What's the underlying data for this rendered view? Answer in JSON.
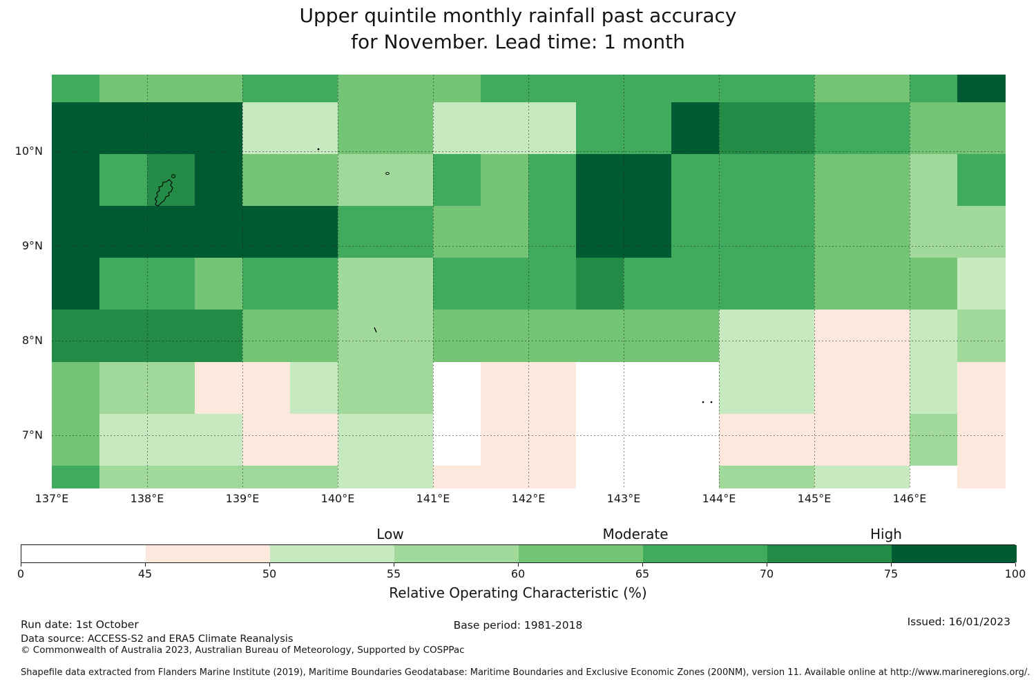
{
  "title": {
    "line1": "Upper quintile monthly rainfall past accuracy",
    "line2": "for November. Lead time: 1 month"
  },
  "chart_data": {
    "type": "heatmap",
    "title": "Upper quintile monthly rainfall past accuracy for November. Lead time: 1 month",
    "xlabel": "Longitude",
    "ylabel": "Latitude",
    "x_tick_labels": [
      "137°E",
      "138°E",
      "139°E",
      "140°E",
      "141°E",
      "142°E",
      "143°E",
      "144°E",
      "145°E",
      "146°E"
    ],
    "y_tick_labels": [
      "10°N",
      "9°N",
      "8°N",
      "7°N"
    ],
    "x_tick_degrees": [
      137,
      138,
      139,
      140,
      141,
      142,
      143,
      144,
      145,
      146
    ],
    "y_tick_degrees": [
      10,
      9,
      8,
      7
    ],
    "lon_edges": [
      137.0,
      137.5,
      138.0,
      138.5,
      139.0,
      139.5,
      140.0,
      140.5,
      141.0,
      141.5,
      142.0,
      142.5,
      143.0,
      143.5,
      144.0,
      144.5,
      145.0,
      145.5,
      146.0,
      146.5,
      147.0
    ],
    "lat_edges": [
      10.8,
      10.51,
      9.97,
      9.42,
      8.88,
      8.33,
      7.78,
      7.24,
      6.69,
      6.46
    ],
    "grid_on": true,
    "value_buckets": {
      "W": "0-45 %",
      "P": "45-50 %",
      "A": "50-55 %",
      "B": "55-60 %",
      "C": "60-65 %",
      "D": "65-70 %",
      "E": "70-75 %",
      "F": "75-100 %"
    },
    "palette": {
      "W": "#ffffff",
      "P": "#fce8dc",
      "A": "#c7e9c0",
      "B": "#a1d99b",
      "C": "#74c476",
      "D": "#41ab5d",
      "E": "#238b45",
      "F": "#005a32"
    },
    "grid_rows": [
      "DCCCDDCCCDDDDDDDCCDF",
      "FFFFAACCAAADDFEEDDCC",
      "FDEFCCBBDCDFFDDDCCBD",
      "FFFFFFDDCCDFFDDDCCBB",
      "FDDCDDBBDDDEDDDDCCCA",
      "EEEECCBBCCCCCCAAPPAB",
      "CBBPPABBWPPWWWAAPPAP",
      "CAAAPPAAWPPWWWPPPPBP",
      "DBBBBBAAPPPWWWBBAAWP"
    ]
  },
  "colorbar": {
    "categories": [
      "Low",
      "Moderate",
      "High"
    ],
    "tick_labels": [
      "0",
      "45",
      "50",
      "55",
      "60",
      "65",
      "70",
      "75",
      "100"
    ],
    "segment_colors": [
      "#ffffff",
      "#fce8dc",
      "#c7e9c0",
      "#a1d99b",
      "#74c476",
      "#41ab5d",
      "#238b45",
      "#005a32"
    ],
    "axis_label": "Relative Operating Characteristic (%)"
  },
  "footer": {
    "run_date": "Run date: 1st October",
    "data_source": "Data source: ACCESS-S2 and ERA5 Climate Reanalysis",
    "copyright": "© Commonwealth of Australia 2023, Australian Bureau of Meteorology, Supported by COSPPac",
    "base_period": "Base period: 1981-2018",
    "issued": "Issued: 16/01/2023",
    "shapefile_note": "Shapefile data extracted from Flanders Marine Institute (2019), Maritime Boundaries Geodatabase: Maritime Boundaries and Exclusive Economic Zones (200NM), version 11. Available online at http://www.marineregions.org/."
  },
  "islands": {
    "main_island": "island-outline",
    "small_islets": "island-dots"
  }
}
